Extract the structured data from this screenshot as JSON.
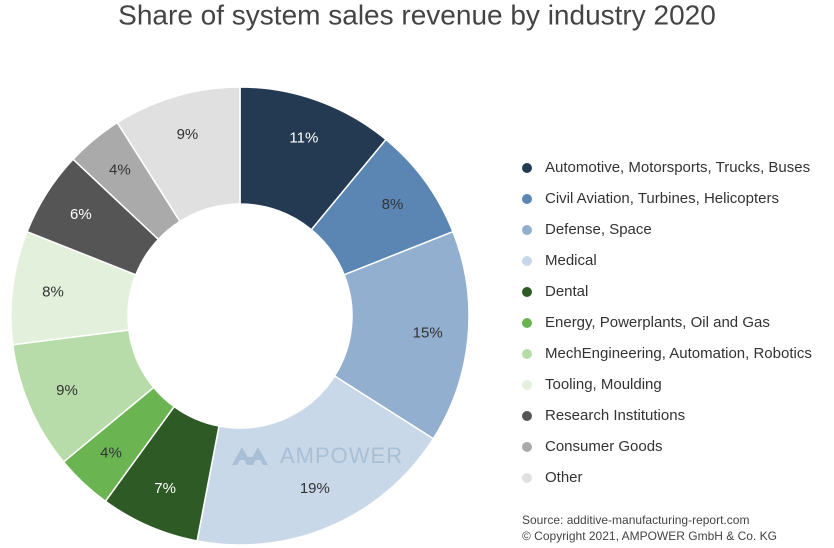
{
  "chart_data": {
    "type": "donut",
    "title": "Share of system sales revenue by industry 2020",
    "categories": [
      "Automotive, Motorsports, Trucks, Buses",
      "Civil Aviation, Turbines, Helicopters",
      "Defense, Space",
      "Medical",
      "Dental",
      "Energy, Powerplants, Oil and Gas",
      "MechEngineering, Automation, Robotics",
      "Tooling, Moulding",
      "Research Institutions",
      "Consumer Goods",
      "Other"
    ],
    "values": [
      11,
      8,
      15,
      19,
      7,
      4,
      9,
      8,
      6,
      4,
      9
    ],
    "value_labels": [
      "11%",
      "8%",
      "15%",
      "19%",
      "7%",
      "4%",
      "9%",
      "8%",
      "6%",
      "4%",
      "9%"
    ],
    "colors": [
      "#243a52",
      "#5b86b4",
      "#93afcf",
      "#c9d8e8",
      "#2e5a26",
      "#6ab552",
      "#b7dcaa",
      "#e3f1dc",
      "#555555",
      "#aaaaaa",
      "#e0e0e0"
    ],
    "legend": "right",
    "watermark": "AMPOWER",
    "source": [
      "Source: additive-manufacturing-report.com",
      "© Copyright 2021, AMPOWER GmbH & Co. KG"
    ]
  }
}
